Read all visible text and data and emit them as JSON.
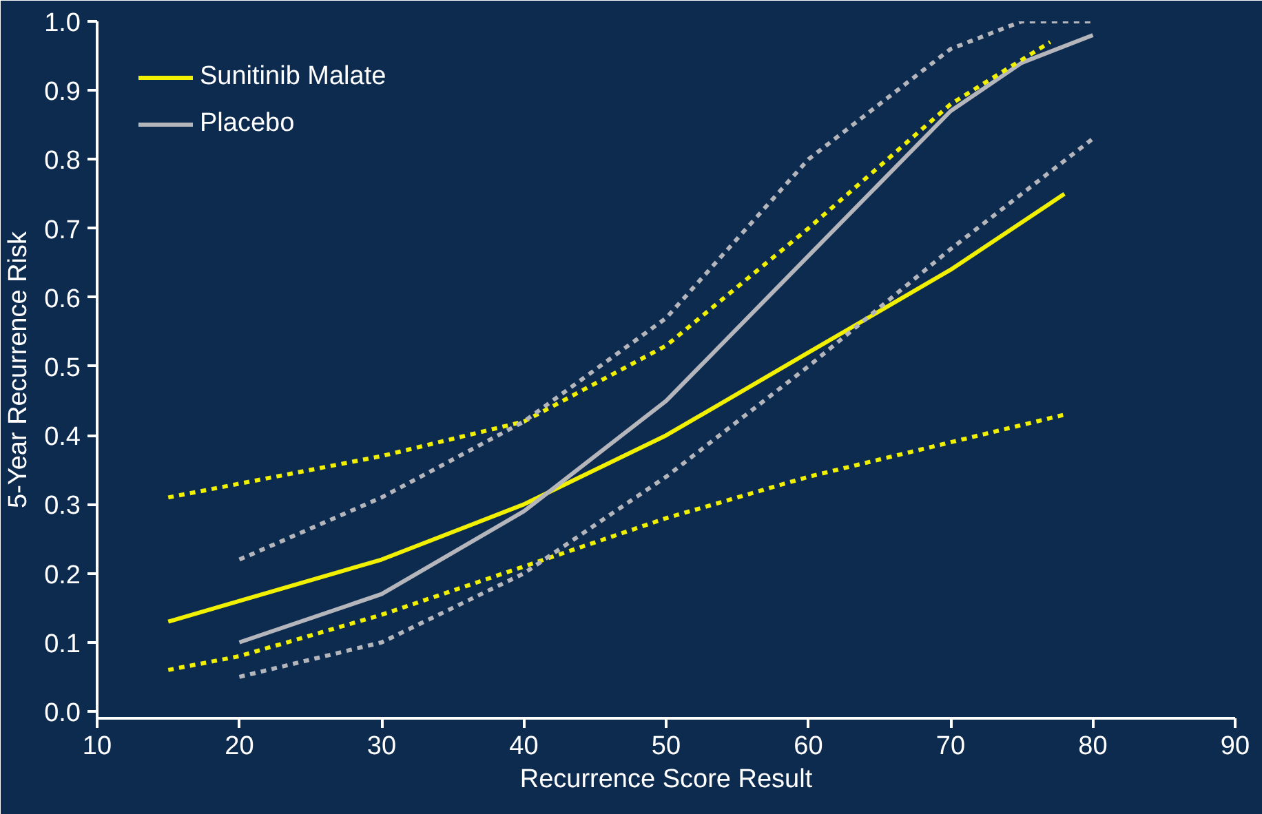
{
  "chart_data": {
    "type": "line",
    "xlabel": "Recurrence Score Result",
    "ylabel": "5-Year Recurrence Risk",
    "xlim": [
      10,
      90
    ],
    "ylim": [
      -0.01,
      1.0
    ],
    "xticks": [
      10,
      20,
      30,
      40,
      50,
      60,
      70,
      80,
      90
    ],
    "yticks": [
      {
        "value": 0,
        "label": "0.0"
      },
      0.1,
      0.2,
      0.3,
      0.4,
      0.5,
      0.6,
      0.7,
      0.8,
      0.9,
      {
        "value": 1,
        "label": "1.0"
      }
    ],
    "grid": false,
    "legend": "top left",
    "line_style": "solid",
    "series": [
      {
        "name": "Sunitinib Malate",
        "color": "#f0f000",
        "x": [
          15,
          20,
          30,
          40,
          50,
          60,
          70,
          78
        ],
        "values": [
          0.13,
          0.16,
          0.22,
          0.3,
          0.4,
          0.52,
          0.64,
          0.75
        ]
      },
      {
        "name": "Placebo",
        "color": "#b4b6bc",
        "x": [
          20,
          30,
          40,
          50,
          60,
          70,
          75,
          80
        ],
        "values": [
          0.1,
          0.17,
          0.29,
          0.45,
          0.66,
          0.87,
          0.94,
          0.98
        ]
      },
      {
        "color": "#f0f000",
        "line_style": "dashed",
        "x": [
          15,
          20,
          30,
          40,
          50,
          60,
          70,
          78
        ],
        "values": [
          0.06,
          0.08,
          0.14,
          0.21,
          0.28,
          0.34,
          0.39,
          0.43
        ]
      },
      {
        "color": "#f0f000",
        "line_style": "dashed",
        "x": [
          15,
          20,
          30,
          40,
          50,
          60,
          70,
          77
        ],
        "values": [
          0.31,
          0.33,
          0.37,
          0.42,
          0.53,
          0.7,
          0.88,
          0.97
        ]
      },
      {
        "color": "#b4b6bc",
        "line_style": "dashed",
        "x": [
          20,
          30,
          40,
          50,
          60,
          70,
          75,
          80
        ],
        "values": [
          0.05,
          0.1,
          0.2,
          0.34,
          0.5,
          0.67,
          0.75,
          0.83
        ]
      },
      {
        "color": "#b4b6bc",
        "line_style": "dashed",
        "x": [
          20,
          30,
          40,
          50,
          60,
          70,
          75,
          80
        ],
        "values": [
          0.22,
          0.31,
          0.42,
          0.57,
          0.8,
          0.96,
          1.0,
          1.0
        ]
      }
    ]
  }
}
